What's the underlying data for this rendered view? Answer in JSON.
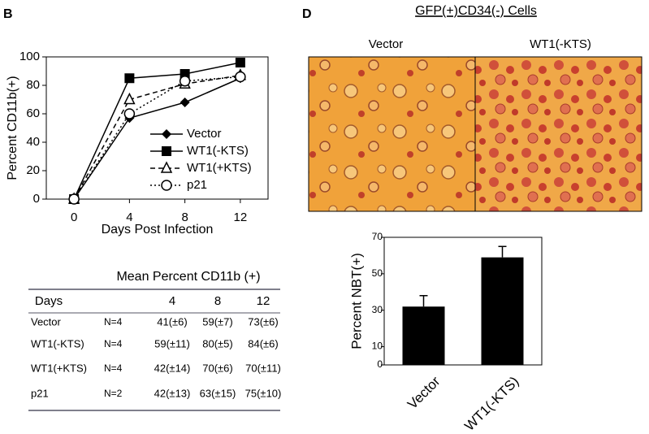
{
  "panels": {
    "left": "B",
    "right": "D"
  },
  "chart_data": [
    {
      "type": "line",
      "xlabel": "Days Post Infection",
      "ylabel": "Percent CD11b(+)",
      "x": [
        0,
        4,
        8,
        12
      ],
      "xlim": [
        -2,
        14
      ],
      "xticks": [
        0,
        4,
        8,
        12
      ],
      "ylim": [
        0,
        100
      ],
      "yticks": [
        0,
        20,
        40,
        60,
        80,
        100
      ],
      "legend": "lower right",
      "series": [
        {
          "name": "Vector",
          "color": "#000000",
          "marker": "diamond",
          "dash": "solid",
          "values": [
            0,
            57,
            68,
            85
          ]
        },
        {
          "name": "WT1(-KTS)",
          "color": "#000000",
          "marker": "square",
          "dash": "solid",
          "values": [
            0,
            85,
            88,
            96
          ]
        },
        {
          "name": "WT1(+KTS)",
          "color": "#000000",
          "marker": "triangle-open",
          "dash": "dashed",
          "values": [
            0,
            70,
            81,
            87
          ]
        },
        {
          "name": "p21",
          "color": "#000000",
          "marker": "circle-open",
          "dash": "dotted",
          "values": [
            0,
            60,
            83,
            86
          ]
        }
      ]
    },
    {
      "type": "bar",
      "ylabel": "Percent NBT(+)",
      "categories": [
        "Vector",
        "WT1(-KTS)"
      ],
      "values": [
        32,
        59
      ],
      "errors": [
        6,
        6
      ],
      "color": "#000000",
      "ylim": [
        0,
        70
      ],
      "yticks": [
        0,
        10,
        30,
        50,
        70
      ]
    }
  ],
  "table": {
    "title": "Mean Percent CD11b (+)",
    "header": [
      "Days",
      "4",
      "8",
      "12"
    ],
    "rows": [
      [
        "Vector",
        "N=4",
        "41(±6)",
        "59(±7)",
        "73(±6)"
      ],
      [
        "WT1(-KTS)",
        "N=4",
        "59(±11)",
        "80(±5)",
        "84(±6)"
      ],
      [
        "WT1(+KTS)",
        "N=4",
        "42(±14)",
        "70(±6)",
        "70(±11)"
      ],
      [
        "p21",
        "N=2",
        "42(±13)",
        "63(±15)",
        "75(±10)"
      ]
    ]
  },
  "images": {
    "title": "GFP(+)CD34(-) Cells",
    "labels": [
      "Vector",
      "WT1(-KTS)"
    ]
  }
}
